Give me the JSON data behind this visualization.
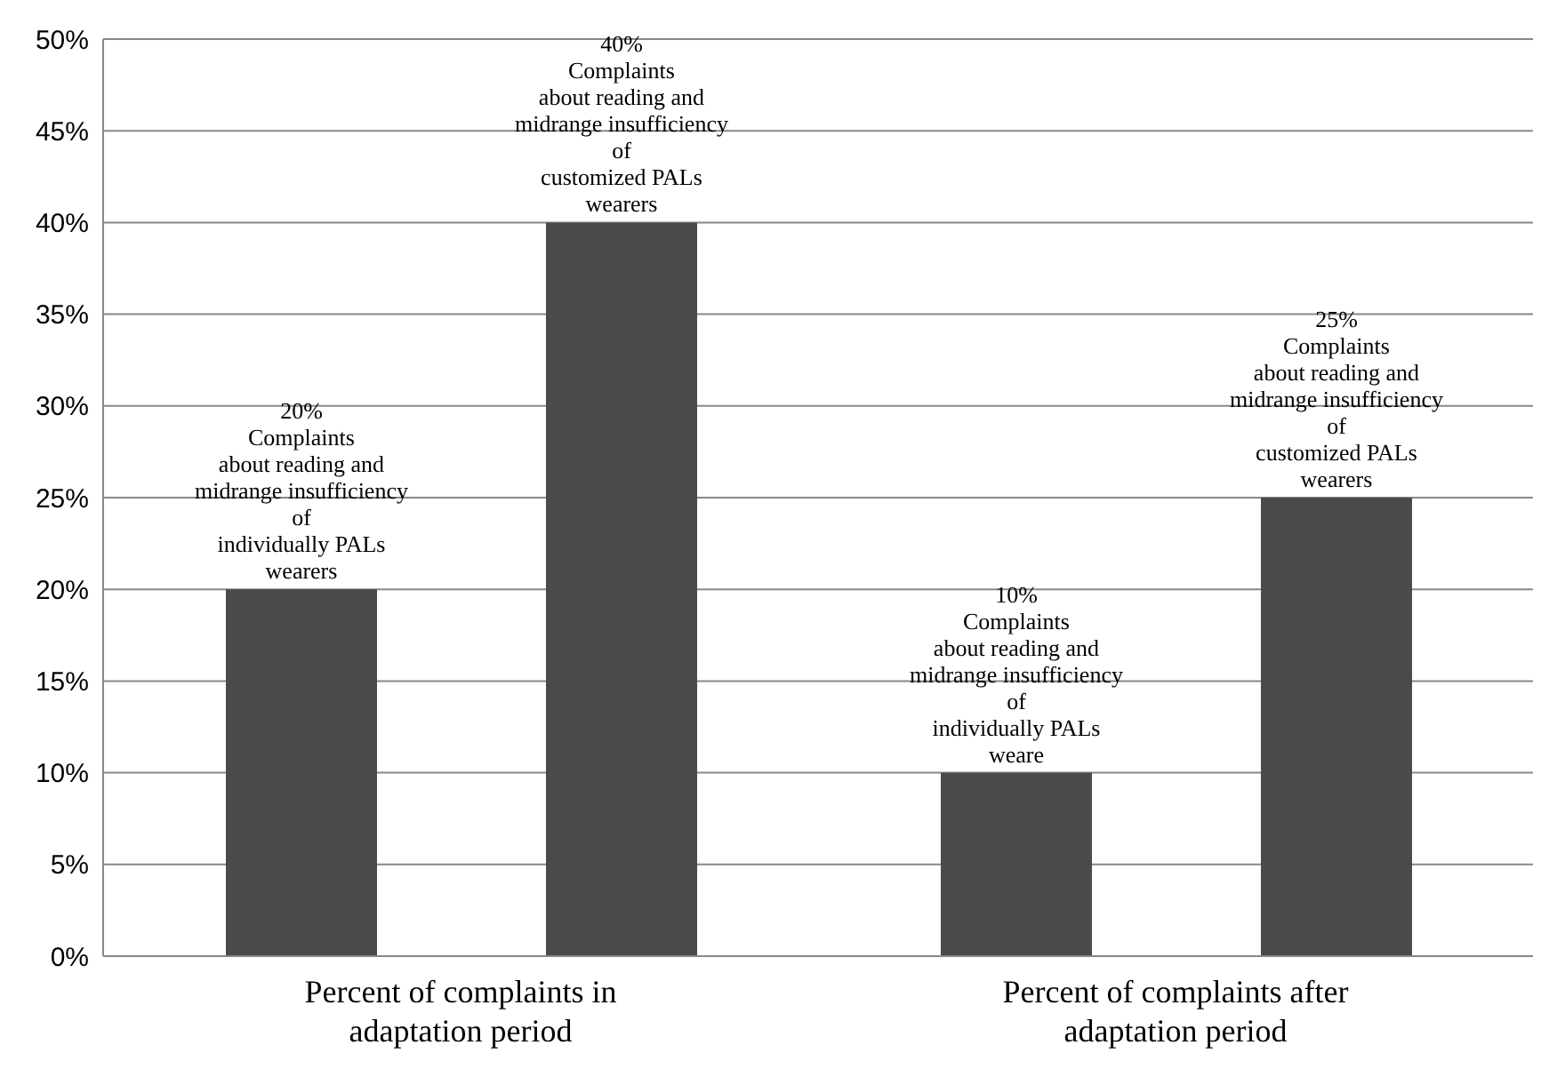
{
  "chart_data": {
    "type": "bar",
    "categories": [
      "Percent of complaints in adaptation period",
      "Percent of complaints after adaptation period"
    ],
    "series": [
      {
        "color": "#4a4a4a",
        "values": [
          20,
          10
        ],
        "value_labels": [
          "20%\nComplaints\nabout reading and\nmidrange insufficiency\nof\nindividually PALs\nwearers",
          "10%\nComplaints\nabout reading and\nmidrange insufficiency\nof\nindividually PALs\nweare"
        ]
      },
      {
        "color": "#4a4a4a",
        "values": [
          40,
          25
        ],
        "value_labels": [
          "40%\nComplaints\nabout reading and\nmidrange insufficiency\nof\ncustomized PALs\nwearers",
          "25%\nComplaints\nabout reading and\nmidrange insufficiency\nof\ncustomized PALs\nwearers"
        ]
      }
    ],
    "ylim": [
      0,
      50
    ],
    "yticks": [
      {
        "value": 0,
        "label": "0%"
      },
      {
        "value": 5,
        "label": "5%"
      },
      {
        "value": 10,
        "label": "10%"
      },
      {
        "value": 15,
        "label": "15%"
      },
      {
        "value": 20,
        "label": "20%"
      },
      {
        "value": 25,
        "label": "25%"
      },
      {
        "value": 30,
        "label": "30%"
      },
      {
        "value": 35,
        "label": "35%"
      },
      {
        "value": 40,
        "label": "40%"
      },
      {
        "value": 45,
        "label": "45%"
      },
      {
        "value": 50,
        "label": "50%"
      }
    ],
    "grid": "y",
    "legend": false
  }
}
